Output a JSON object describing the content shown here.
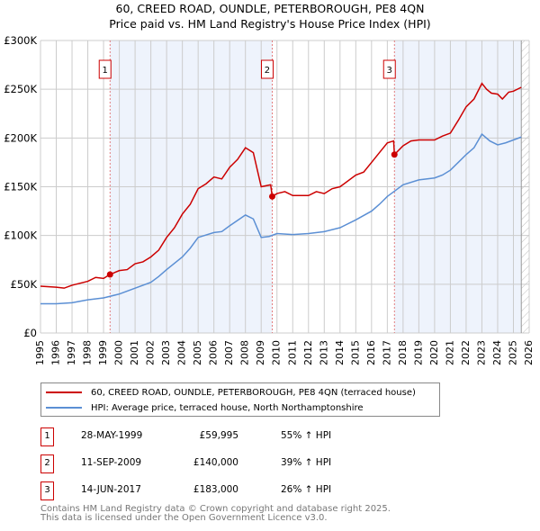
{
  "chart_data": {
    "type": "line",
    "title": "60, CREED ROAD, OUNDLE, PETERBOROUGH, PE8 4QN",
    "subtitle": "Price paid vs. HM Land Registry's House Price Index (HPI)",
    "xlim": [
      1995,
      2026
    ],
    "ylim": [
      0,
      300000
    ],
    "yticks": [
      {
        "v": 0,
        "l": "£0"
      },
      {
        "v": 50000,
        "l": "£50K"
      },
      {
        "v": 100000,
        "l": "£100K"
      },
      {
        "v": 150000,
        "l": "£150K"
      },
      {
        "v": 200000,
        "l": "£200K"
      },
      {
        "v": 250000,
        "l": "£250K"
      },
      {
        "v": 300000,
        "l": "£300K"
      }
    ],
    "xticks": [
      "1995",
      "1996",
      "1997",
      "1998",
      "1999",
      "2000",
      "2001",
      "2002",
      "2003",
      "2004",
      "2005",
      "2006",
      "2007",
      "2008",
      "2009",
      "2010",
      "2011",
      "2012",
      "2013",
      "2014",
      "2015",
      "2016",
      "2017",
      "2018",
      "2019",
      "2020",
      "2021",
      "2022",
      "2023",
      "2024",
      "2025",
      "2026"
    ],
    "grid": true,
    "series": [
      {
        "name": "60, CREED ROAD, OUNDLE, PETERBOROUGH, PE8 4QN (terraced house)",
        "color": "#cc0000",
        "x": [
          1995,
          1996,
          1996.5,
          1997,
          1998,
          1998.5,
          1999,
          1999.4,
          2000,
          2000.5,
          2001,
          2001.5,
          2002,
          2002.5,
          2003,
          2003.5,
          2004,
          2004.5,
          2005,
          2005.5,
          2006,
          2006.5,
          2007,
          2007.5,
          2008,
          2008.5,
          2009,
          2009.6,
          2009.7,
          2010,
          2010.5,
          2011,
          2012,
          2012.5,
          2013,
          2013.5,
          2014,
          2015,
          2015.5,
          2016,
          2016.5,
          2017,
          2017.4,
          2017.45,
          2018,
          2018.5,
          2019,
          2020,
          2020.5,
          2021,
          2021.5,
          2022,
          2022.5,
          2023,
          2023.3,
          2023.6,
          2024,
          2024.3,
          2024.7,
          2025,
          2025.5
        ],
        "y": [
          48000,
          47000,
          46000,
          49000,
          53000,
          57000,
          56000,
          60000,
          64000,
          65000,
          71000,
          73000,
          78000,
          85000,
          98000,
          108000,
          122000,
          132000,
          148000,
          153000,
          160000,
          158000,
          170000,
          178000,
          190000,
          185000,
          150000,
          152000,
          140000,
          143000,
          145000,
          141000,
          141000,
          145000,
          143000,
          148000,
          150000,
          162000,
          165000,
          175000,
          185000,
          195000,
          197000,
          183000,
          192000,
          197000,
          198000,
          198000,
          202000,
          205000,
          218000,
          232000,
          240000,
          256000,
          250000,
          246000,
          245000,
          240000,
          247000,
          248000,
          252000
        ]
      },
      {
        "name": "HPI: Average price, terraced house, North Northamptonshire",
        "color": "#5b8fd4",
        "x": [
          1995,
          1996,
          1997,
          1998,
          1999,
          2000,
          2001,
          2002,
          2002.5,
          2003,
          2004,
          2004.5,
          2005,
          2006,
          2006.5,
          2007,
          2008,
          2008.5,
          2009,
          2009.5,
          2010,
          2011,
          2012,
          2013,
          2014,
          2015,
          2016,
          2016.5,
          2017,
          2017.5,
          2018,
          2019,
          2020,
          2020.5,
          2021,
          2021.5,
          2022,
          2022.5,
          2023,
          2023.5,
          2024,
          2024.5,
          2025,
          2025.5
        ],
        "y": [
          30000,
          30000,
          31000,
          34000,
          36000,
          40000,
          46000,
          52000,
          58000,
          65000,
          78000,
          87000,
          98000,
          103000,
          104000,
          110000,
          121000,
          117000,
          98000,
          99000,
          102000,
          101000,
          102000,
          104000,
          108000,
          116000,
          125000,
          132000,
          140000,
          146000,
          152000,
          157000,
          159000,
          162000,
          167000,
          175000,
          183000,
          190000,
          204000,
          197000,
          193000,
          195000,
          198000,
          201000
        ]
      }
    ],
    "sales": [
      {
        "n": "1",
        "x": 1999.41,
        "y": 59995,
        "date": "28-MAY-1999",
        "price": "£59,995",
        "hpi": "55% ↑ HPI"
      },
      {
        "n": "2",
        "x": 2009.7,
        "y": 140000,
        "date": "11-SEP-2009",
        "price": "£140,000",
        "hpi": "39% ↑ HPI"
      },
      {
        "n": "3",
        "x": 2017.45,
        "y": 183000,
        "date": "14-JUN-2017",
        "price": "£183,000",
        "hpi": "26% ↑ HPI"
      }
    ],
    "forecast_from": 2025.5
  },
  "legend": {
    "red": "60, CREED ROAD, OUNDLE, PETERBOROUGH, PE8 4QN (terraced house)",
    "blue": "HPI: Average price, terraced house, North Northamptonshire"
  },
  "footer": {
    "line1": "Contains HM Land Registry data © Crown copyright and database right 2025.",
    "line2": "This data is licensed under the Open Government Licence v3.0."
  }
}
